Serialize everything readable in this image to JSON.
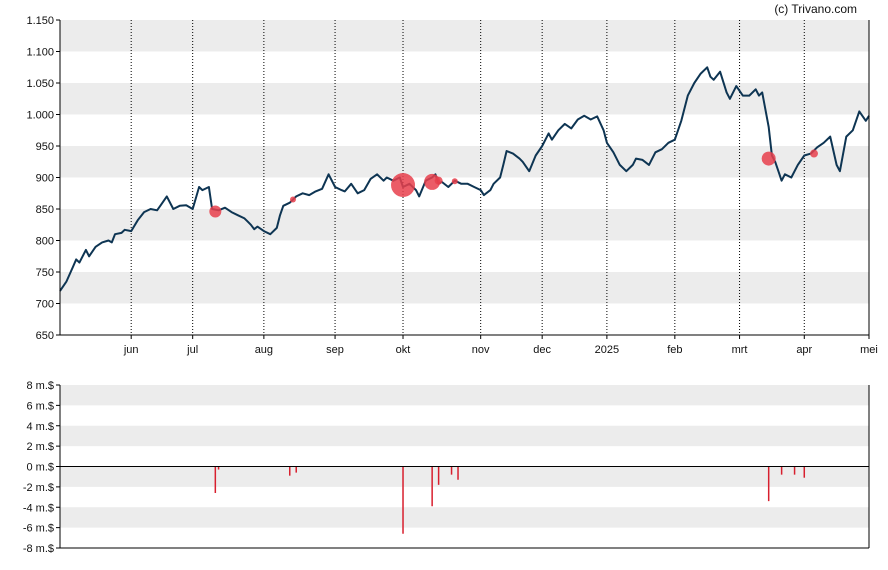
{
  "credit": "(c) Trivano.com",
  "colors": {
    "line": "#0e3553",
    "marker": "#e8404c",
    "bar": "#d81f2e",
    "band": "#ececec",
    "grid": "#000000"
  },
  "chart_data": [
    {
      "type": "line",
      "ylim": [
        650,
        1150
      ],
      "yticks": [
        650,
        700,
        750,
        800,
        850,
        900,
        950,
        1000,
        1050,
        1100,
        1150
      ],
      "ytick_labels": [
        "650",
        "700",
        "750",
        "800",
        "850",
        "900",
        "950",
        "1.000",
        "1.050",
        "1.100",
        "1.150"
      ],
      "xlim": [
        0,
        250
      ],
      "months": [
        {
          "label": "jun",
          "x": 22
        },
        {
          "label": "jul",
          "x": 41
        },
        {
          "label": "aug",
          "x": 63
        },
        {
          "label": "sep",
          "x": 85
        },
        {
          "label": "okt",
          "x": 106
        },
        {
          "label": "nov",
          "x": 130
        },
        {
          "label": "dec",
          "x": 149
        },
        {
          "label": "2025",
          "x": 169
        },
        {
          "label": "feb",
          "x": 190
        },
        {
          "label": "mrt",
          "x": 210
        },
        {
          "label": "apr",
          "x": 230
        },
        {
          "label": "mei",
          "x": 250
        }
      ],
      "series": [
        {
          "points": [
            [
              0,
              720
            ],
            [
              2,
              735
            ],
            [
              4,
              758
            ],
            [
              5,
              770
            ],
            [
              6,
              765
            ],
            [
              8,
              785
            ],
            [
              9,
              775
            ],
            [
              11,
              790
            ],
            [
              13,
              797
            ],
            [
              15,
              800
            ],
            [
              16,
              797
            ],
            [
              17,
              810
            ],
            [
              19,
              812
            ],
            [
              20,
              817
            ],
            [
              22,
              815
            ],
            [
              24,
              832
            ],
            [
              26,
              845
            ],
            [
              28,
              850
            ],
            [
              30,
              848
            ],
            [
              31,
              855
            ],
            [
              33,
              870
            ],
            [
              35,
              850
            ],
            [
              37,
              855
            ],
            [
              39,
              856
            ],
            [
              41,
              850
            ],
            [
              43,
              885
            ],
            [
              44,
              880
            ],
            [
              46,
              885
            ],
            [
              47,
              850
            ],
            [
              49,
              848
            ],
            [
              51,
              852
            ],
            [
              53,
              845
            ],
            [
              55,
              840
            ],
            [
              57,
              835
            ],
            [
              58,
              830
            ],
            [
              59,
              825
            ],
            [
              60,
              818
            ],
            [
              61,
              822
            ],
            [
              63,
              815
            ],
            [
              65,
              810
            ],
            [
              67,
              820
            ],
            [
              68,
              840
            ],
            [
              69,
              855
            ],
            [
              71,
              860
            ],
            [
              73,
              870
            ],
            [
              75,
              875
            ],
            [
              77,
              872
            ],
            [
              79,
              878
            ],
            [
              81,
              882
            ],
            [
              83,
              905
            ],
            [
              85,
              885
            ],
            [
              87,
              880
            ],
            [
              88,
              878
            ],
            [
              90,
              890
            ],
            [
              92,
              875
            ],
            [
              94,
              880
            ],
            [
              96,
              898
            ],
            [
              98,
              905
            ],
            [
              100,
              895
            ],
            [
              101,
              900
            ],
            [
              103,
              895
            ],
            [
              105,
              900
            ],
            [
              106,
              885
            ],
            [
              108,
              890
            ],
            [
              110,
              880
            ],
            [
              111,
              870
            ],
            [
              113,
              895
            ],
            [
              115,
              900
            ],
            [
              116,
              905
            ],
            [
              117,
              890
            ],
            [
              118,
              893
            ],
            [
              120,
              885
            ],
            [
              122,
              895
            ],
            [
              124,
              890
            ],
            [
              126,
              890
            ],
            [
              128,
              885
            ],
            [
              130,
              880
            ],
            [
              131,
              872
            ],
            [
              133,
              880
            ],
            [
              134,
              890
            ],
            [
              136,
              900
            ],
            [
              137,
              920
            ],
            [
              138,
              942
            ],
            [
              140,
              938
            ],
            [
              142,
              930
            ],
            [
              143,
              925
            ],
            [
              145,
              910
            ],
            [
              147,
              935
            ],
            [
              149,
              950
            ],
            [
              151,
              970
            ],
            [
              152,
              960
            ],
            [
              154,
              975
            ],
            [
              156,
              985
            ],
            [
              158,
              978
            ],
            [
              160,
              992
            ],
            [
              162,
              998
            ],
            [
              164,
              992
            ],
            [
              166,
              997
            ],
            [
              168,
              975
            ],
            [
              169,
              955
            ],
            [
              171,
              940
            ],
            [
              173,
              920
            ],
            [
              175,
              910
            ],
            [
              177,
              920
            ],
            [
              178,
              930
            ],
            [
              180,
              928
            ],
            [
              182,
              920
            ],
            [
              184,
              940
            ],
            [
              186,
              945
            ],
            [
              188,
              955
            ],
            [
              190,
              960
            ],
            [
              192,
              990
            ],
            [
              194,
              1030
            ],
            [
              196,
              1050
            ],
            [
              198,
              1065
            ],
            [
              200,
              1075
            ],
            [
              201,
              1060
            ],
            [
              202,
              1055
            ],
            [
              204,
              1068
            ],
            [
              206,
              1035
            ],
            [
              207,
              1025
            ],
            [
              209,
              1045
            ],
            [
              211,
              1030
            ],
            [
              213,
              1030
            ],
            [
              215,
              1040
            ],
            [
              216,
              1030
            ],
            [
              217,
              1035
            ],
            [
              219,
              980
            ],
            [
              220,
              935
            ],
            [
              221,
              925
            ],
            [
              222,
              910
            ],
            [
              223,
              895
            ],
            [
              224,
              905
            ],
            [
              226,
              900
            ],
            [
              228,
              920
            ],
            [
              230,
              935
            ],
            [
              232,
              938
            ],
            [
              234,
              948
            ],
            [
              236,
              955
            ],
            [
              238,
              965
            ],
            [
              240,
              920
            ],
            [
              241,
              910
            ],
            [
              243,
              965
            ],
            [
              245,
              975
            ],
            [
              247,
              1005
            ],
            [
              249,
              990
            ],
            [
              250,
              998
            ]
          ]
        }
      ],
      "markers": [
        {
          "x": 48,
          "y": 846,
          "size": 4
        },
        {
          "x": 72,
          "y": 865,
          "size": 1
        },
        {
          "x": 106,
          "y": 888,
          "size": 10
        },
        {
          "x": 115,
          "y": 893,
          "size": 6
        },
        {
          "x": 117,
          "y": 895,
          "size": 2
        },
        {
          "x": 122,
          "y": 894,
          "size": 1
        },
        {
          "x": 219,
          "y": 930,
          "size": 5
        },
        {
          "x": 233,
          "y": 938,
          "size": 2
        }
      ]
    },
    {
      "type": "bar",
      "unit": "m.$",
      "ylim": [
        -8,
        8
      ],
      "yticks": [
        8,
        6,
        4,
        2,
        0,
        -2,
        -4,
        -6,
        -8
      ],
      "ytick_labels": [
        "8 m.$",
        "6 m.$",
        "4 m.$",
        "2 m.$",
        "0 m.$",
        "-2 m.$",
        "-4 m.$",
        "-6 m.$",
        "-8 m.$"
      ],
      "bars": [
        {
          "x": 48,
          "value": -2.6
        },
        {
          "x": 49,
          "value": -0.3
        },
        {
          "x": 71,
          "value": -0.9
        },
        {
          "x": 73,
          "value": -0.6
        },
        {
          "x": 106,
          "value": -6.6
        },
        {
          "x": 115,
          "value": -3.9
        },
        {
          "x": 117,
          "value": -1.8
        },
        {
          "x": 121,
          "value": -0.8
        },
        {
          "x": 123,
          "value": -1.3
        },
        {
          "x": 219,
          "value": -3.4
        },
        {
          "x": 223,
          "value": -0.8
        },
        {
          "x": 227,
          "value": -0.8
        },
        {
          "x": 230,
          "value": -1.1
        }
      ]
    }
  ]
}
